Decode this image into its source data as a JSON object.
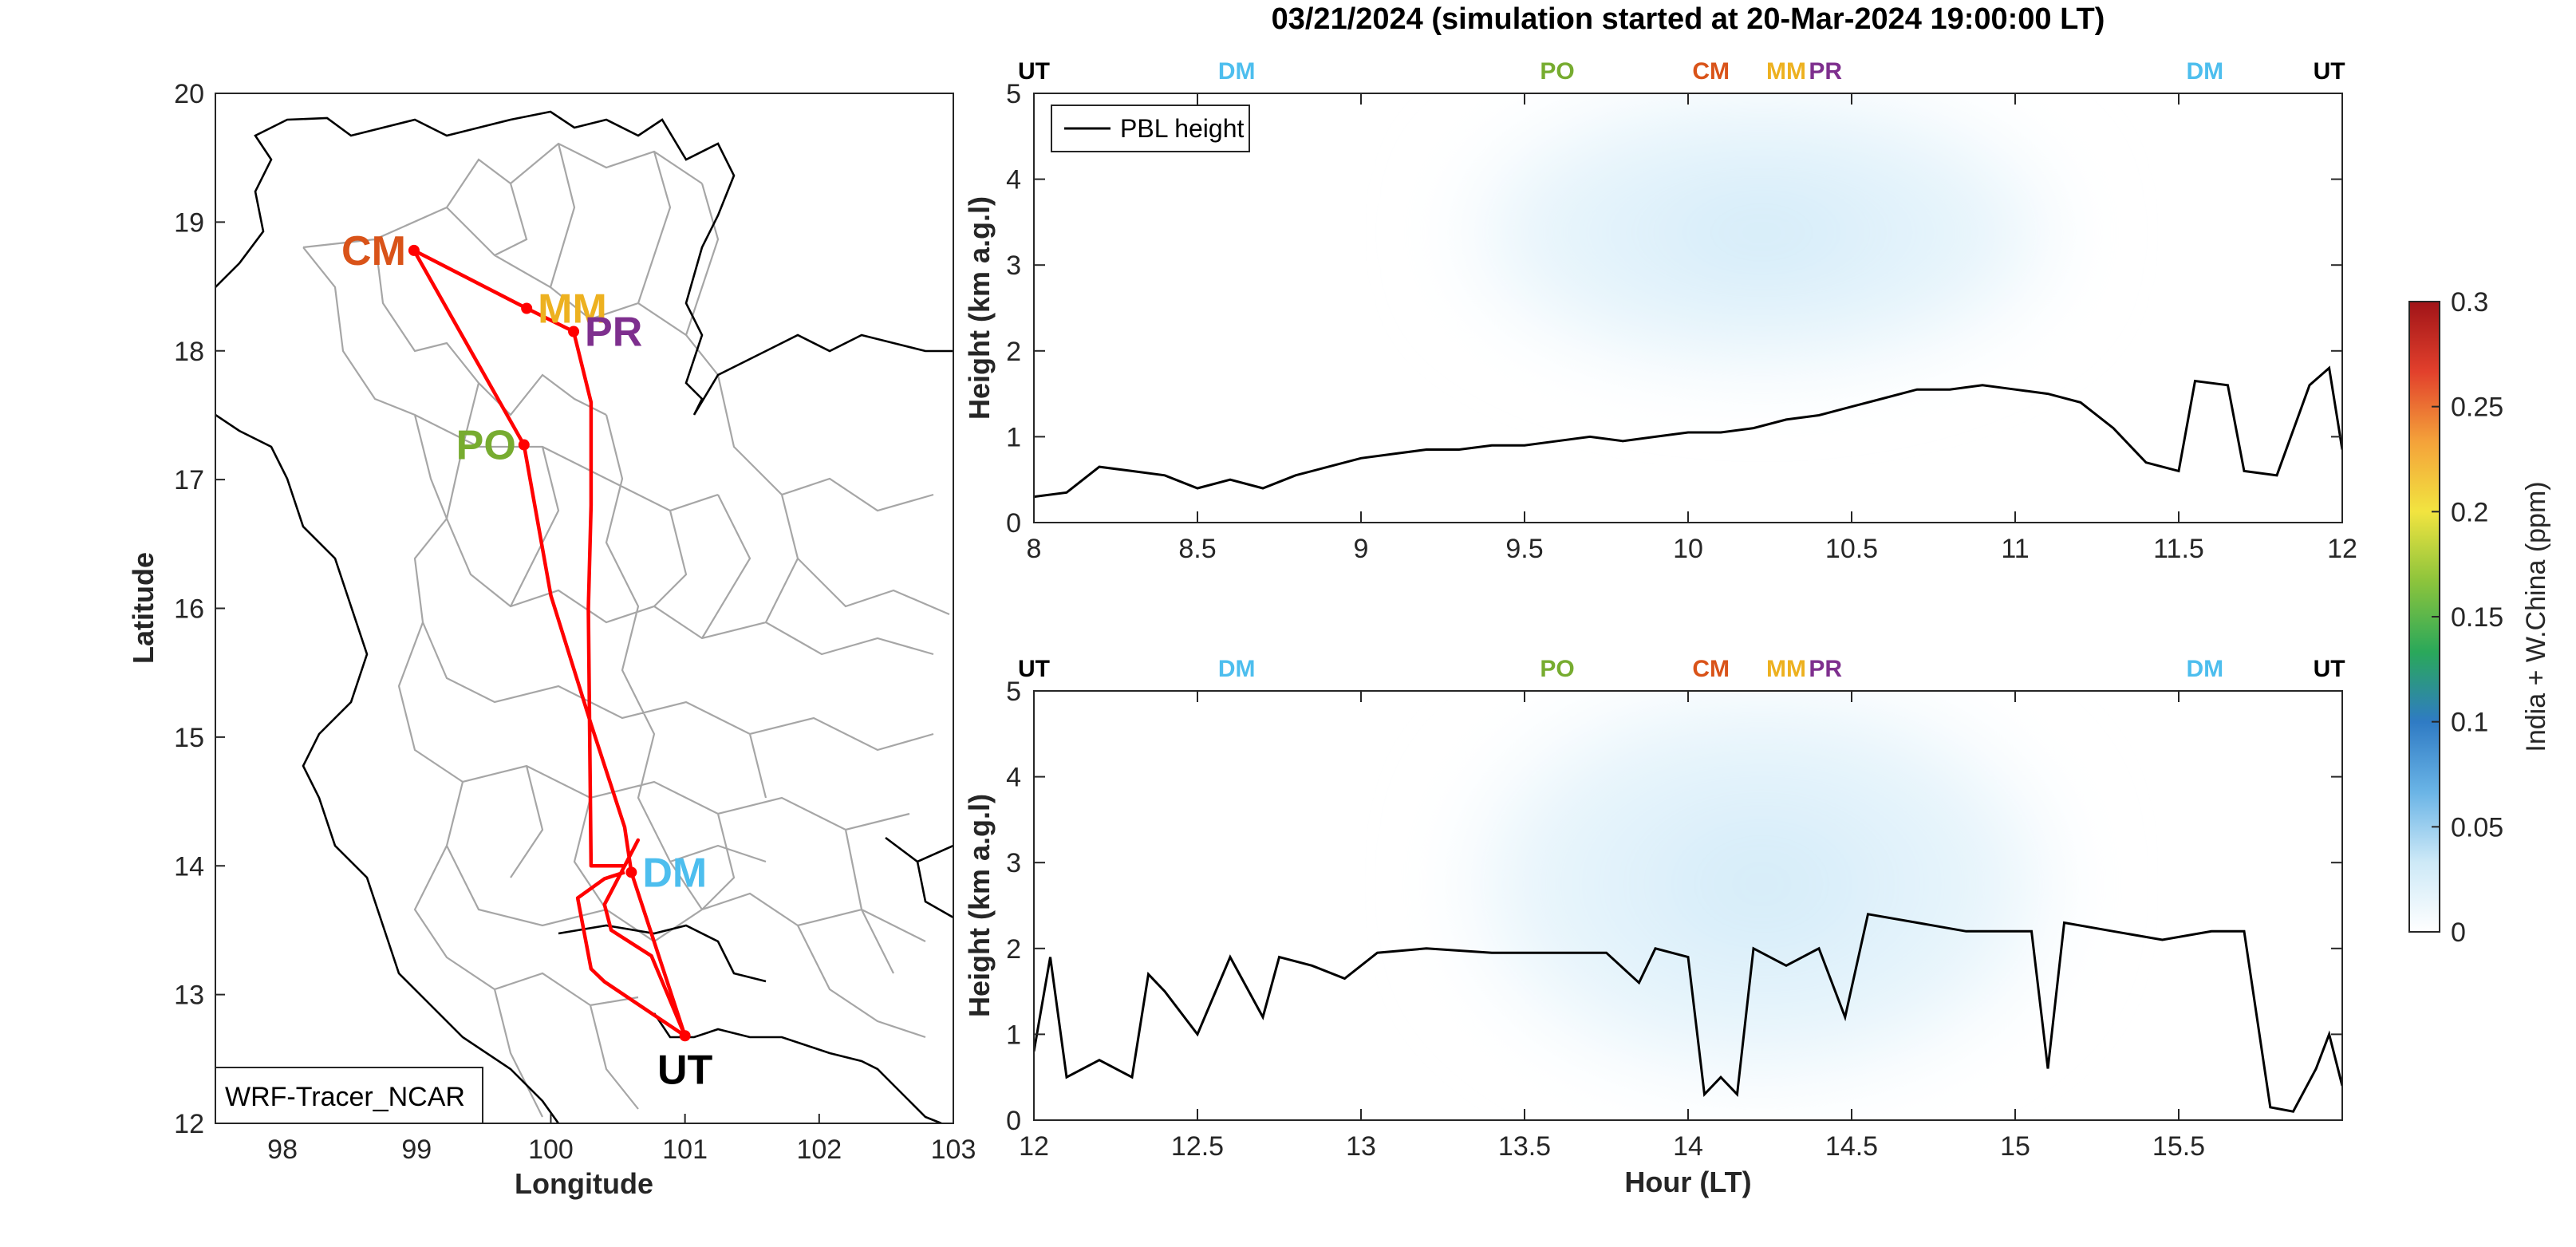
{
  "figure": {
    "title": "03/21/2024 (simulation started at 20-Mar-2024 19:00:00 LT)",
    "colors": {
      "UT": "#000000",
      "DM": "#4DBEEE",
      "PO": "#77AC30",
      "CM": "#D95319",
      "MM": "#EDB120",
      "PR": "#7E2F8E",
      "route": "#FF0000",
      "boundary": "#A6A6A6",
      "pbl": "#000000"
    }
  },
  "map": {
    "xlabel": "Longitude",
    "ylabel": "Latitude",
    "xlim": [
      97.5,
      103
    ],
    "ylim": [
      12,
      20
    ],
    "xticks": [
      "98",
      "99",
      "100",
      "101",
      "102",
      "103"
    ],
    "yticks": [
      "12",
      "13",
      "14",
      "15",
      "16",
      "17",
      "18",
      "19",
      "20"
    ],
    "model_label": "WRF-Tracer_NCAR",
    "sites": [
      {
        "code": "CM",
        "lon": 98.98,
        "lat": 18.78,
        "label_side": "left"
      },
      {
        "code": "MM",
        "lon": 99.82,
        "lat": 18.33,
        "label_side": "right"
      },
      {
        "code": "PR",
        "lon": 100.17,
        "lat": 18.15,
        "label_side": "right"
      },
      {
        "code": "PO",
        "lon": 99.8,
        "lat": 17.27,
        "label_side": "left"
      },
      {
        "code": "DM",
        "lon": 100.6,
        "lat": 13.95,
        "label_side": "right"
      },
      {
        "code": "UT",
        "lon": 101.0,
        "lat": 12.68,
        "label_side": "below"
      }
    ],
    "route": [
      [
        101.0,
        12.68
      ],
      [
        100.6,
        13.95
      ],
      [
        100.55,
        14.3
      ],
      [
        100.3,
        15.1
      ],
      [
        100.0,
        16.1
      ],
      [
        99.8,
        17.27
      ],
      [
        98.98,
        18.78
      ],
      [
        99.82,
        18.33
      ],
      [
        100.17,
        18.15
      ],
      [
        100.3,
        17.6
      ],
      [
        100.3,
        16.8
      ],
      [
        100.28,
        16.0
      ],
      [
        100.3,
        14.0
      ],
      [
        100.55,
        14.0
      ],
      [
        100.65,
        14.2
      ],
      [
        100.4,
        13.7
      ],
      [
        100.45,
        13.5
      ],
      [
        100.75,
        13.3
      ],
      [
        101.0,
        12.68
      ],
      [
        100.4,
        13.1
      ],
      [
        100.3,
        13.2
      ],
      [
        100.2,
        13.75
      ],
      [
        100.4,
        13.9
      ],
      [
        100.55,
        13.95
      ]
    ]
  },
  "panels": [
    {
      "id": "top",
      "ylabel": "Height (km a.g.l)",
      "xlabel": "",
      "xlim": [
        8,
        12
      ],
      "ylim": [
        0,
        5
      ],
      "xticks": [
        "8",
        "8.5",
        "9",
        "9.5",
        "10",
        "10.5",
        "11",
        "11.5",
        "12"
      ],
      "yticks": [
        "0",
        "1",
        "2",
        "3",
        "4",
        "5"
      ],
      "legend": "PBL height",
      "site_marks": [
        {
          "code": "UT",
          "x": 8.0
        },
        {
          "code": "DM",
          "x": 8.62
        },
        {
          "code": "PO",
          "x": 9.6
        },
        {
          "code": "CM",
          "x": 10.07
        },
        {
          "code": "MM",
          "x": 10.3
        },
        {
          "code": "PR",
          "x": 10.42
        },
        {
          "code": "DM",
          "x": 11.58
        },
        {
          "code": "UT",
          "x": 11.96
        }
      ],
      "pbl_nodes": [
        [
          8.0,
          0.3
        ],
        [
          8.1,
          0.35
        ],
        [
          8.2,
          0.65
        ],
        [
          8.3,
          0.6
        ],
        [
          8.4,
          0.55
        ],
        [
          8.5,
          0.4
        ],
        [
          8.6,
          0.5
        ],
        [
          8.7,
          0.4
        ],
        [
          8.8,
          0.55
        ],
        [
          8.9,
          0.65
        ],
        [
          9.0,
          0.75
        ],
        [
          9.1,
          0.8
        ],
        [
          9.2,
          0.85
        ],
        [
          9.3,
          0.85
        ],
        [
          9.4,
          0.9
        ],
        [
          9.5,
          0.9
        ],
        [
          9.6,
          0.95
        ],
        [
          9.7,
          1.0
        ],
        [
          9.8,
          0.95
        ],
        [
          9.9,
          1.0
        ],
        [
          10.0,
          1.05
        ],
        [
          10.1,
          1.05
        ],
        [
          10.2,
          1.1
        ],
        [
          10.3,
          1.2
        ],
        [
          10.4,
          1.25
        ],
        [
          10.5,
          1.35
        ],
        [
          10.6,
          1.45
        ],
        [
          10.7,
          1.55
        ],
        [
          10.8,
          1.55
        ],
        [
          10.9,
          1.6
        ],
        [
          11.0,
          1.55
        ],
        [
          11.1,
          1.5
        ],
        [
          11.2,
          1.4
        ],
        [
          11.3,
          1.1
        ],
        [
          11.4,
          0.7
        ],
        [
          11.5,
          0.6
        ],
        [
          11.55,
          1.65
        ],
        [
          11.65,
          1.6
        ],
        [
          11.7,
          0.6
        ],
        [
          11.8,
          0.55
        ],
        [
          11.9,
          1.6
        ],
        [
          11.96,
          1.8
        ],
        [
          12.0,
          0.85
        ]
      ],
      "cloud": {
        "x0": 9.25,
        "x1": 11.2,
        "y0": 1.4,
        "y1": 5.0,
        "peak": 0.03
      }
    },
    {
      "id": "bottom",
      "ylabel": "Height (km a.g.l)",
      "xlabel": "Hour (LT)",
      "xlim": [
        12,
        16
      ],
      "ylim": [
        0,
        5
      ],
      "xticks": [
        "12",
        "12.5",
        "13",
        "13.5",
        "14",
        "14.5",
        "15",
        "15.5"
      ],
      "yticks": [
        "0",
        "1",
        "2",
        "3",
        "4",
        "5"
      ],
      "legend": "",
      "site_marks": [
        {
          "code": "UT",
          "x": 12.0
        },
        {
          "code": "DM",
          "x": 12.62
        },
        {
          "code": "PO",
          "x": 13.6
        },
        {
          "code": "CM",
          "x": 14.07
        },
        {
          "code": "MM",
          "x": 14.3
        },
        {
          "code": "PR",
          "x": 14.42
        },
        {
          "code": "DM",
          "x": 15.58
        },
        {
          "code": "UT",
          "x": 15.96
        }
      ],
      "pbl_nodes": [
        [
          12.0,
          0.8
        ],
        [
          12.05,
          1.9
        ],
        [
          12.1,
          0.5
        ],
        [
          12.2,
          0.7
        ],
        [
          12.3,
          0.5
        ],
        [
          12.35,
          1.7
        ],
        [
          12.4,
          1.5
        ],
        [
          12.5,
          1.0
        ],
        [
          12.6,
          1.9
        ],
        [
          12.7,
          1.2
        ],
        [
          12.75,
          1.9
        ],
        [
          12.85,
          1.8
        ],
        [
          12.95,
          1.65
        ],
        [
          13.05,
          1.95
        ],
        [
          13.2,
          2.0
        ],
        [
          13.4,
          1.95
        ],
        [
          13.6,
          1.95
        ],
        [
          13.75,
          1.95
        ],
        [
          13.85,
          1.6
        ],
        [
          13.9,
          2.0
        ],
        [
          14.0,
          1.9
        ],
        [
          14.05,
          0.3
        ],
        [
          14.1,
          0.5
        ],
        [
          14.15,
          0.3
        ],
        [
          14.2,
          2.0
        ],
        [
          14.3,
          1.8
        ],
        [
          14.4,
          2.0
        ],
        [
          14.48,
          1.2
        ],
        [
          14.55,
          2.4
        ],
        [
          14.7,
          2.3
        ],
        [
          14.85,
          2.2
        ],
        [
          15.05,
          2.2
        ],
        [
          15.1,
          0.6
        ],
        [
          15.15,
          2.3
        ],
        [
          15.3,
          2.2
        ],
        [
          15.45,
          2.1
        ],
        [
          15.6,
          2.2
        ],
        [
          15.7,
          2.2
        ],
        [
          15.78,
          0.15
        ],
        [
          15.85,
          0.1
        ],
        [
          15.92,
          0.6
        ],
        [
          15.96,
          1.0
        ],
        [
          16.0,
          0.4
        ]
      ],
      "cloud": {
        "x0": 13.25,
        "x1": 15.2,
        "y0": 0.0,
        "y1": 5.0,
        "peak": 0.03
      }
    }
  ],
  "colorbar": {
    "label": "India + W.China (ppm)",
    "clim": [
      0,
      0.3
    ],
    "ticks": [
      "0",
      "0.05",
      "0.1",
      "0.15",
      "0.2",
      "0.25",
      "0.3"
    ],
    "colormap": [
      "#FFFFFF",
      "#CDE9F7",
      "#6AB4E6",
      "#2F7BC4",
      "#2AA85A",
      "#8CC43C",
      "#F2E440",
      "#F4A23A",
      "#E2402C",
      "#A01418"
    ]
  }
}
